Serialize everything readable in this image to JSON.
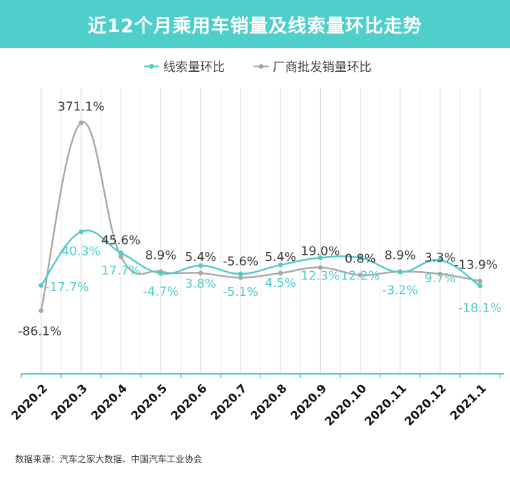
{
  "title": "近12个月乘用车销量及线索量环比走势",
  "source": "数据来源：汽车之家大数据、中国汽车工业协会",
  "colors": {
    "banner": "#4fcfcc",
    "series_a": "#52cbc8",
    "series_b": "#a8a8a8",
    "label_b": "#3a3a3a",
    "grid": "#d9d9d9",
    "axis": "#52cbc8"
  },
  "chart_data": {
    "type": "line",
    "categories": [
      "2020.2",
      "2020.3",
      "2020.4",
      "2020.5",
      "2020.6",
      "2020.7",
      "2020.8",
      "2020.9",
      "2020.10",
      "2020.11",
      "2020.12",
      "2021.1"
    ],
    "series": [
      {
        "name": "线索量环比",
        "values": [
          -17.7,
          40.3,
          17.7,
          -4.7,
          3.8,
          -5.1,
          4.5,
          12.3,
          12.2,
          -3.2,
          9.7,
          -18.1
        ],
        "labels": [
          "-17.7%",
          "40.3%",
          "17.7%",
          "-4.7%",
          "3.8%",
          "-5.1%",
          "4.5%",
          "12.3%",
          "12.2%",
          "-3.2%",
          "9.7%",
          "-18.1%"
        ]
      },
      {
        "name": "厂商批发销量环比",
        "values": [
          -86.1,
          371.1,
          45.6,
          8.9,
          5.4,
          -5.6,
          5.4,
          19.0,
          0.8,
          8.9,
          3.3,
          -13.9
        ],
        "labels": [
          "-86.1%",
          "371.1%",
          "45.6%",
          "8.9%",
          "5.4%",
          "-5.6%",
          "5.4%",
          "19.0%",
          "0.8%",
          "8.9%",
          "3.3%",
          "-13.9%"
        ]
      }
    ],
    "legend_position": "top",
    "grid": true,
    "x_label_rotation": "diagonal"
  }
}
